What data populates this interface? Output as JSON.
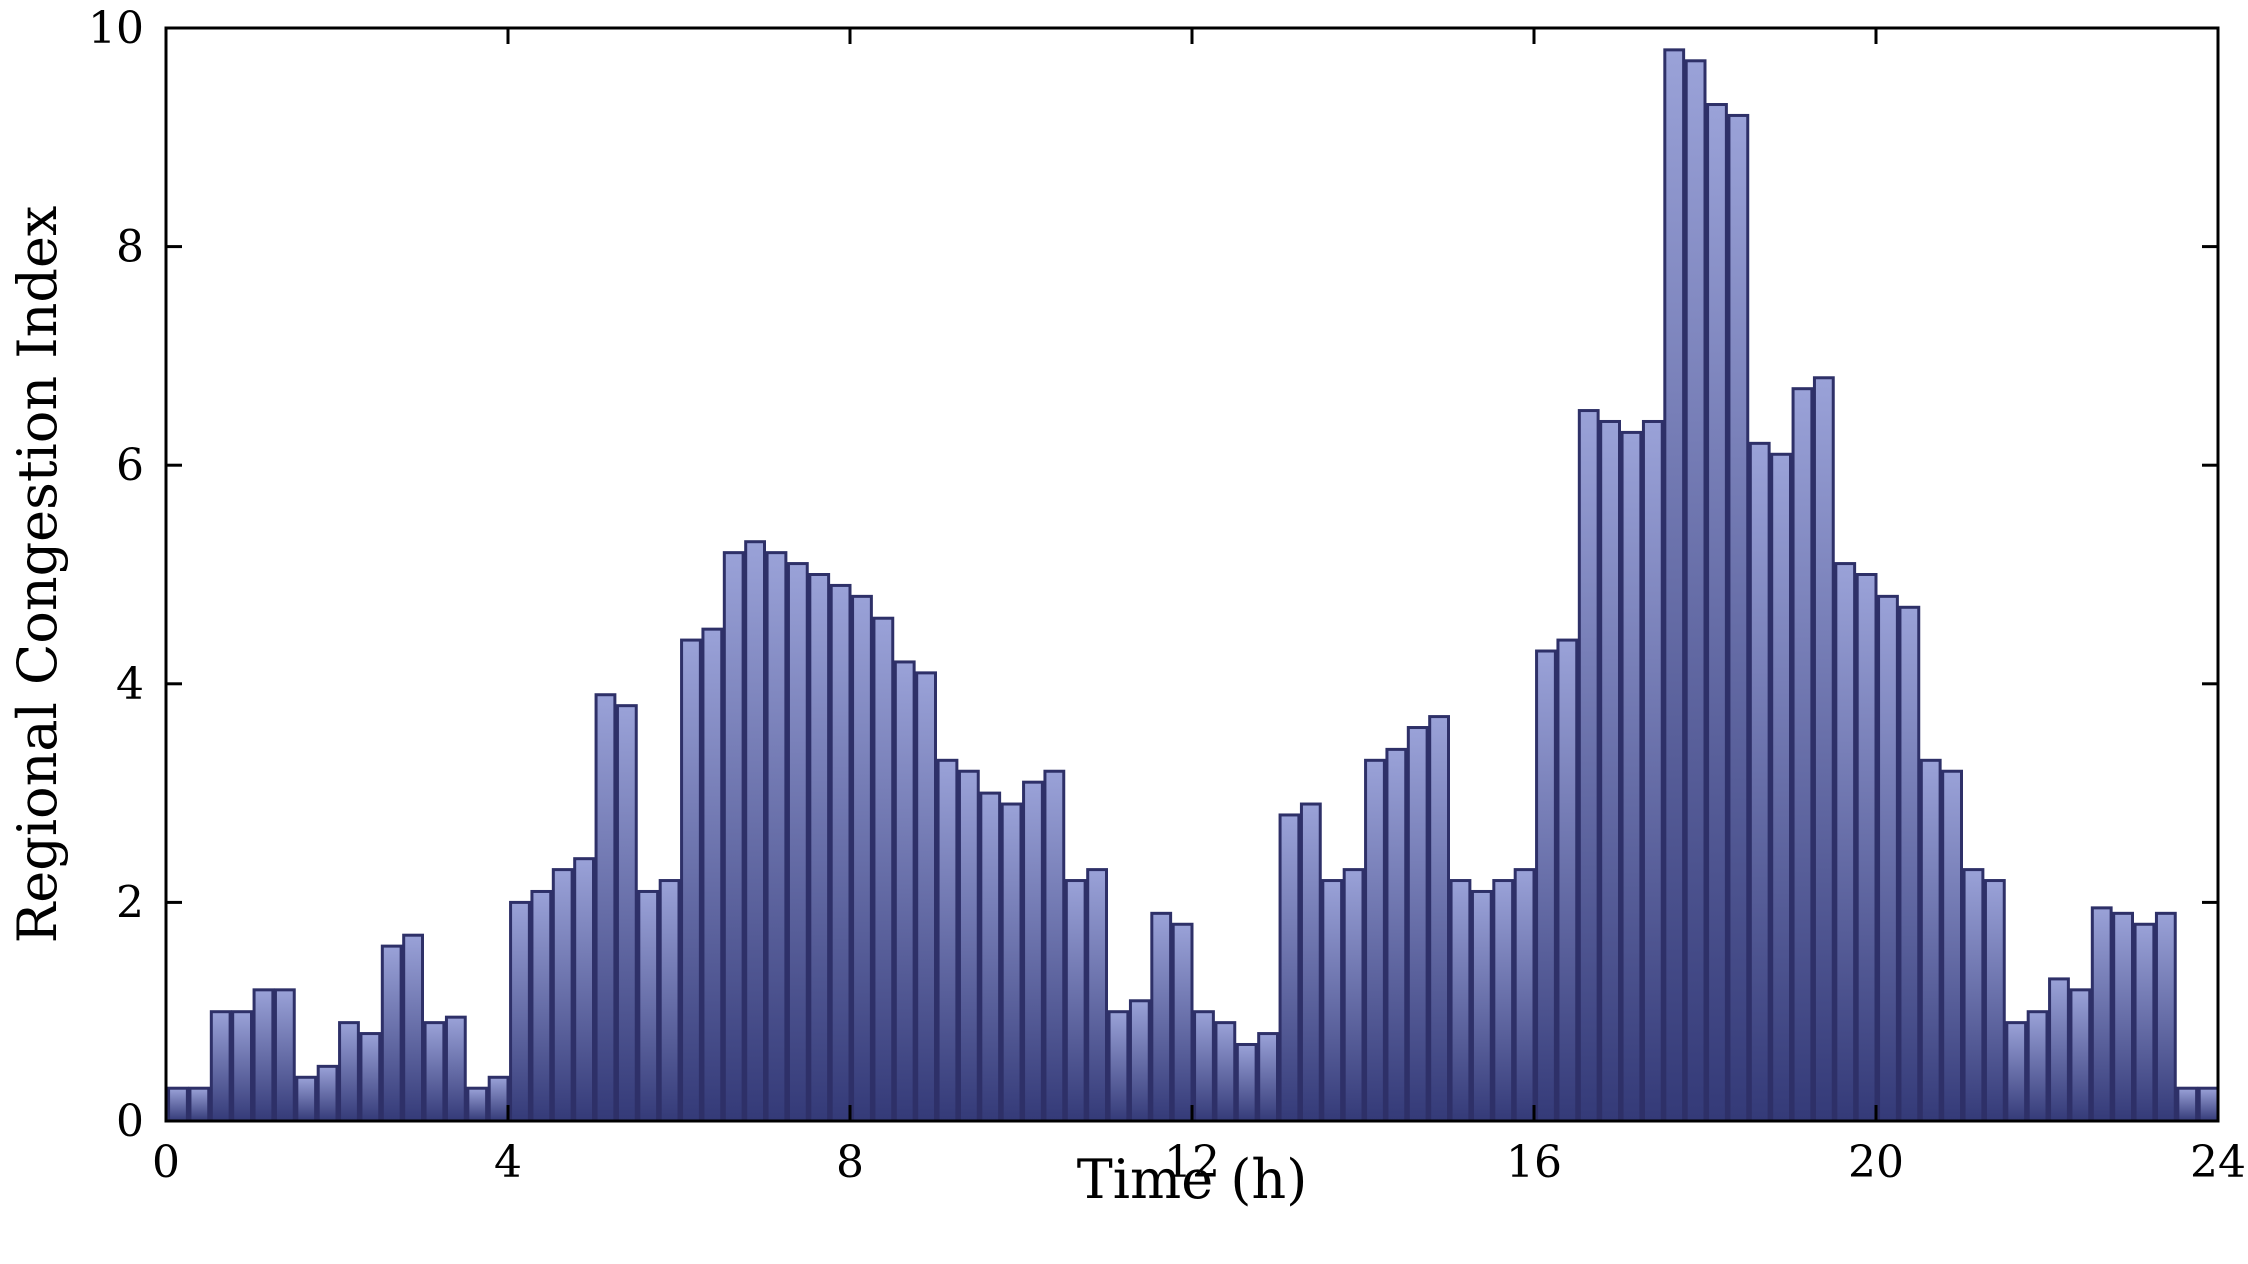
{
  "chart_data": {
    "type": "bar",
    "xlabel": "Time (h)",
    "ylabel": "Regional Congestion Index",
    "xlim": [
      0,
      24
    ],
    "ylim": [
      0,
      10
    ],
    "xticks": [
      "0",
      "4",
      "8",
      "12",
      "16",
      "20",
      "24"
    ],
    "yticks": [
      "0",
      "2",
      "4",
      "6",
      "8",
      "10"
    ],
    "grid": false,
    "legend": "none",
    "bar_width_hours": 0.22,
    "colors": {
      "bar_top": "#9aa2d8",
      "bar_bottom": "#343a78",
      "bar_edge": "#2e3068"
    },
    "x": [
      0.25,
      0.5,
      0.75,
      1.0,
      1.25,
      1.5,
      1.75,
      2.0,
      2.25,
      2.5,
      2.75,
      3.0,
      3.25,
      3.5,
      3.75,
      4.0,
      4.25,
      4.5,
      4.75,
      5.0,
      5.25,
      5.5,
      5.75,
      6.0,
      6.25,
      6.5,
      6.75,
      7.0,
      7.25,
      7.5,
      7.75,
      8.0,
      8.25,
      8.5,
      8.75,
      9.0,
      9.25,
      9.5,
      9.75,
      10.0,
      10.25,
      10.5,
      10.75,
      11.0,
      11.25,
      11.5,
      11.75,
      12.0,
      12.25,
      12.5,
      12.75,
      13.0,
      13.25,
      13.5,
      13.75,
      14.0,
      14.25,
      14.5,
      14.75,
      15.0,
      15.25,
      15.5,
      15.75,
      16.0,
      16.25,
      16.5,
      16.75,
      17.0,
      17.25,
      17.5,
      17.75,
      18.0,
      18.25,
      18.5,
      18.75,
      19.0,
      19.25,
      19.5,
      19.75,
      20.0,
      20.25,
      20.5,
      20.75,
      21.0,
      21.25,
      21.5,
      21.75,
      22.0,
      22.25,
      22.5,
      22.75,
      23.0,
      23.25,
      23.5,
      23.75,
      24.0
    ],
    "values": [
      0.3,
      0.3,
      1.0,
      1.0,
      1.2,
      1.2,
      0.4,
      0.5,
      0.9,
      0.8,
      1.6,
      1.7,
      0.9,
      0.95,
      0.3,
      0.4,
      2.0,
      2.1,
      2.3,
      2.4,
      3.9,
      3.8,
      2.1,
      2.2,
      4.4,
      4.5,
      5.2,
      5.3,
      5.2,
      5.1,
      5.0,
      4.9,
      4.8,
      4.6,
      4.2,
      4.1,
      3.3,
      3.2,
      3.0,
      2.9,
      3.1,
      3.2,
      2.2,
      2.3,
      1.0,
      1.1,
      1.9,
      1.8,
      1.0,
      0.9,
      0.7,
      0.8,
      2.8,
      2.9,
      2.2,
      2.3,
      3.3,
      3.4,
      3.6,
      3.7,
      2.2,
      2.1,
      2.2,
      2.3,
      4.3,
      4.4,
      6.5,
      6.4,
      6.3,
      6.4,
      9.8,
      9.7,
      9.3,
      9.2,
      6.2,
      6.1,
      6.7,
      6.8,
      5.1,
      5.0,
      4.8,
      4.7,
      3.3,
      3.2,
      2.3,
      2.2,
      0.9,
      1.0,
      1.3,
      1.2,
      1.95,
      1.9,
      1.8,
      1.9,
      0.3,
      0.3
    ]
  }
}
